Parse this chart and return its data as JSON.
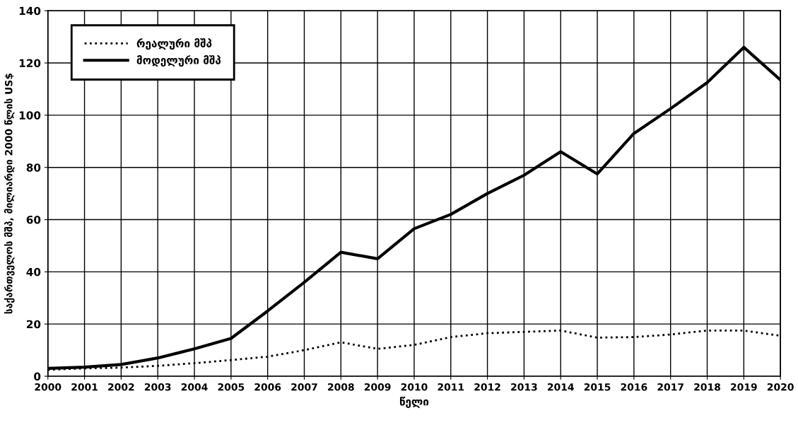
{
  "chart_data": {
    "type": "line",
    "xlabel": "წელი",
    "ylabel": "საქართველოს მშპ, მილიარდი 2000 წლის US$",
    "x": [
      2000,
      2001,
      2002,
      2003,
      2004,
      2005,
      2006,
      2007,
      2008,
      2009,
      2010,
      2011,
      2012,
      2013,
      2014,
      2015,
      2016,
      2017,
      2018,
      2019,
      2020
    ],
    "series": [
      {
        "name": "რეალური მშპ",
        "color": "#000000",
        "line_style": "dotted",
        "values": [
          2.5,
          3,
          3.3,
          4,
          5,
          6.2,
          7.5,
          10,
          13,
          10.5,
          12,
          15,
          16.5,
          17,
          17.5,
          14.8,
          15,
          16,
          17.5,
          17.5,
          15.5
        ]
      },
      {
        "name": "მოდელური მშპ",
        "color": "#000000",
        "line_style": "solid",
        "values": [
          3,
          3.5,
          4.5,
          7,
          10.5,
          14.5,
          25,
          36,
          47.5,
          45,
          56.5,
          62,
          70,
          77,
          86,
          77.5,
          93,
          102.5,
          112.5,
          126,
          113.5
        ]
      }
    ],
    "xlim": [
      2000,
      2020
    ],
    "xticks": [
      2000,
      2001,
      2002,
      2003,
      2004,
      2005,
      2006,
      2007,
      2008,
      2009,
      2010,
      2011,
      2012,
      2013,
      2014,
      2015,
      2016,
      2017,
      2018,
      2019,
      2020
    ],
    "ylim": [
      0,
      140
    ],
    "yticks": [
      0,
      20,
      40,
      60,
      80,
      100,
      120,
      140
    ],
    "grid": true,
    "legend": "top left"
  }
}
